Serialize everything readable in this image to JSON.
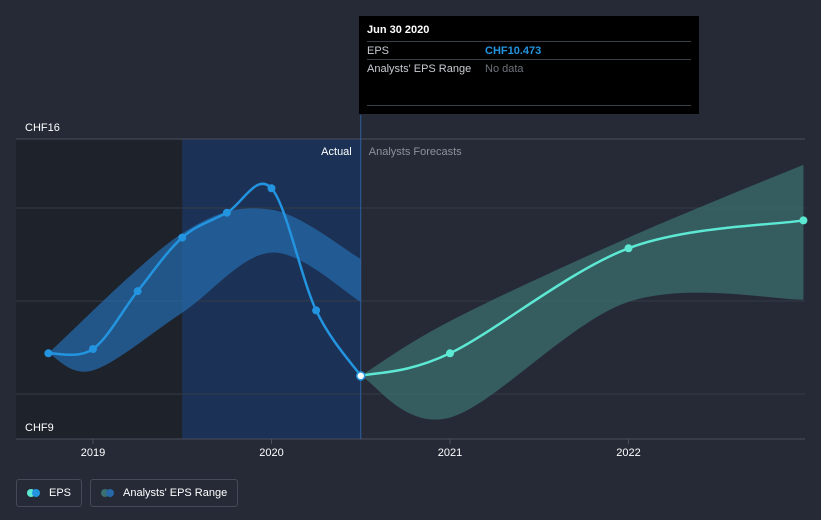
{
  "chart_data": {
    "type": "line",
    "y_axis": {
      "min": 9,
      "max": 16,
      "top_label": "CHF16",
      "bottom_label": "CHF9"
    },
    "x_axis": {
      "ticks": [
        2019,
        2020,
        2021,
        2022
      ]
    },
    "section_labels": {
      "actual": "Actual",
      "forecast": "Analysts Forecasts"
    },
    "divider_x": 2020.5,
    "highlight_band": [
      2019.5,
      2020.5
    ],
    "eps_actual": [
      {
        "x": 2018.75,
        "y": 11.0
      },
      {
        "x": 2019.0,
        "y": 11.1
      },
      {
        "x": 2019.25,
        "y": 12.45
      },
      {
        "x": 2019.5,
        "y": 13.7
      },
      {
        "x": 2019.75,
        "y": 14.28
      },
      {
        "x": 2020.0,
        "y": 14.85
      },
      {
        "x": 2020.25,
        "y": 12.0
      },
      {
        "x": 2020.5,
        "y": 10.473
      }
    ],
    "eps_range_actual": {
      "upper": [
        {
          "x": 2018.75,
          "y": 11.0
        },
        {
          "x": 2019.5,
          "y": 13.8
        },
        {
          "x": 2020.0,
          "y": 14.35
        },
        {
          "x": 2020.5,
          "y": 13.2
        }
      ],
      "lower": [
        {
          "x": 2018.75,
          "y": 11.0
        },
        {
          "x": 2019.0,
          "y": 10.6
        },
        {
          "x": 2019.5,
          "y": 11.95
        },
        {
          "x": 2020.0,
          "y": 13.35
        },
        {
          "x": 2020.5,
          "y": 12.2
        }
      ]
    },
    "eps_forecast": [
      {
        "x": 2020.5,
        "y": 10.473
      },
      {
        "x": 2021.0,
        "y": 11.0
      },
      {
        "x": 2022.0,
        "y": 13.45
      },
      {
        "x": 2022.98,
        "y": 14.1
      }
    ],
    "eps_range_forecast": {
      "upper": [
        {
          "x": 2020.5,
          "y": 10.473
        },
        {
          "x": 2021.0,
          "y": 11.75
        },
        {
          "x": 2022.0,
          "y": 13.7
        },
        {
          "x": 2022.98,
          "y": 15.4
        }
      ],
      "lower": [
        {
          "x": 2020.5,
          "y": 10.473
        },
        {
          "x": 2021.0,
          "y": 9.5
        },
        {
          "x": 2022.0,
          "y": 12.2
        },
        {
          "x": 2022.98,
          "y": 12.25
        }
      ]
    },
    "gridlines": true,
    "colors": {
      "eps_line": "#2394df",
      "forecast_line": "#5de8d4",
      "actual_range": "#2668a8",
      "forecast_range": "#3b6e6e",
      "highlight": "#1b3256",
      "past_shade": "#1e222a"
    }
  },
  "tooltip": {
    "date": "Jun 30 2020",
    "eps_label": "EPS",
    "eps_value": "CHF10.473",
    "range_label": "Analysts' EPS Range",
    "range_value": "No data"
  },
  "legend": {
    "eps_label": "EPS",
    "range_label": "Analysts' EPS Range"
  }
}
